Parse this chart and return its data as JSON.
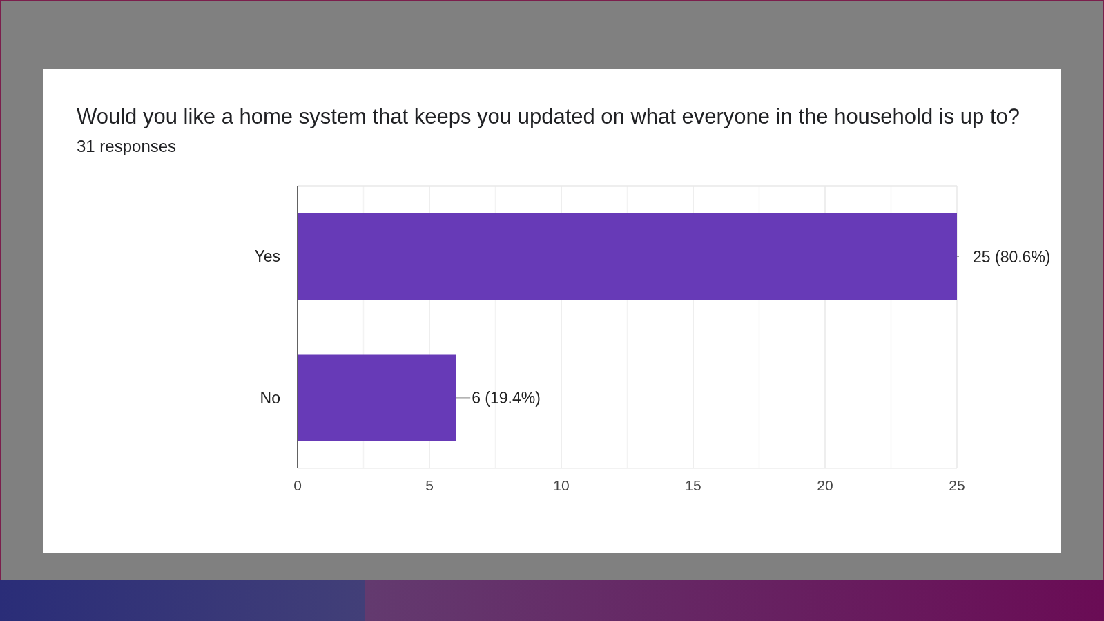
{
  "chart_data": {
    "type": "bar",
    "orientation": "horizontal",
    "title": "Would you like a home system that keeps you updated on what everyone in the household is up to?",
    "subtitle": "31 responses",
    "categories": [
      "Yes",
      "No"
    ],
    "values": [
      25,
      6
    ],
    "color": "#673ab7",
    "value_labels": [
      "25 (80.6%)",
      "6 (19.4%)"
    ],
    "xlim": [
      0,
      25
    ],
    "xticks": [
      0,
      {
        "value": 2.5,
        "label": null
      },
      5,
      {
        "value": 7.5,
        "label": null
      },
      10,
      {
        "value": 12.5,
        "label": null
      },
      15,
      {
        "value": 17.5,
        "label": null
      },
      20,
      {
        "value": 22.5,
        "label": null
      },
      25
    ],
    "grid": "x"
  }
}
